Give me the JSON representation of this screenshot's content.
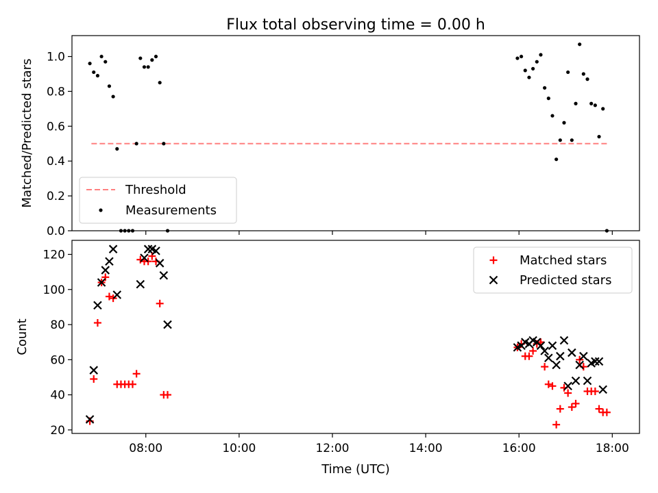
{
  "figure": {
    "title": "Flux total observing time = 0.00 h"
  },
  "chart_data": [
    {
      "type": "scatter",
      "panel": "top",
      "ylabel": "Matched/Predicted stars",
      "xlim": [
        "06:25",
        "18:35"
      ],
      "ylim": [
        0,
        1.12
      ],
      "yticks": [
        0.0,
        0.2,
        0.4,
        0.6,
        0.8,
        1.0
      ],
      "ytick_labels": [
        "0.0",
        "0.2",
        "0.4",
        "0.6",
        "0.8",
        "1.0"
      ],
      "grid": false,
      "legend": {
        "placement": "lower-left",
        "entries": [
          {
            "label": "Threshold",
            "marker": "dashed-line",
            "color": "#ff7f7f"
          },
          {
            "label": "Measurements",
            "marker": "dot",
            "color": "#000000"
          }
        ]
      },
      "threshold": {
        "name": "Threshold",
        "value": 0.5,
        "x_range": [
          "06:50",
          "17:53"
        ],
        "color": "#ff7f7f"
      },
      "series": [
        {
          "name": "Measurements",
          "color": "#000000",
          "points": [
            [
              "06:48",
              0.96
            ],
            [
              "06:53",
              0.91
            ],
            [
              "06:58",
              0.89
            ],
            [
              "07:03",
              1.0
            ],
            [
              "07:08",
              0.97
            ],
            [
              "07:13",
              0.83
            ],
            [
              "07:18",
              0.77
            ],
            [
              "07:23",
              0.47
            ],
            [
              "07:28",
              0.0
            ],
            [
              "07:33",
              0.0
            ],
            [
              "07:38",
              0.0
            ],
            [
              "07:43",
              0.0
            ],
            [
              "07:48",
              0.5
            ],
            [
              "07:53",
              0.99
            ],
            [
              "07:58",
              0.94
            ],
            [
              "08:03",
              0.94
            ],
            [
              "08:08",
              0.98
            ],
            [
              "08:13",
              1.0
            ],
            [
              "08:18",
              0.85
            ],
            [
              "08:23",
              0.5
            ],
            [
              "08:28",
              0.0
            ],
            [
              "15:58",
              0.99
            ],
            [
              "16:03",
              1.0
            ],
            [
              "16:08",
              0.92
            ],
            [
              "16:13",
              0.88
            ],
            [
              "16:18",
              0.93
            ],
            [
              "16:23",
              0.97
            ],
            [
              "16:28",
              1.01
            ],
            [
              "16:33",
              0.82
            ],
            [
              "16:38",
              0.76
            ],
            [
              "16:43",
              0.66
            ],
            [
              "16:48",
              0.41
            ],
            [
              "16:53",
              0.52
            ],
            [
              "16:58",
              0.62
            ],
            [
              "17:03",
              0.91
            ],
            [
              "17:08",
              0.52
            ],
            [
              "17:13",
              0.73
            ],
            [
              "17:18",
              1.07
            ],
            [
              "17:23",
              0.9
            ],
            [
              "17:28",
              0.87
            ],
            [
              "17:33",
              0.73
            ],
            [
              "17:38",
              0.72
            ],
            [
              "17:43",
              0.54
            ],
            [
              "17:48",
              0.7
            ],
            [
              "17:53",
              0.0
            ]
          ]
        }
      ]
    },
    {
      "type": "scatter",
      "panel": "bottom",
      "xlabel": "Time (UTC)",
      "ylabel": "Count",
      "xlim": [
        "06:25",
        "18:35"
      ],
      "ylim": [
        18,
        128
      ],
      "xticks": [
        "08:00",
        "10:00",
        "12:00",
        "14:00",
        "16:00",
        "18:00"
      ],
      "yticks": [
        20,
        40,
        60,
        80,
        100,
        120
      ],
      "ytick_labels": [
        "20",
        "40",
        "60",
        "80",
        "100",
        "120"
      ],
      "grid": false,
      "legend": {
        "placement": "upper-right",
        "entries": [
          {
            "label": "Matched stars",
            "marker": "plus",
            "color": "#ff0000"
          },
          {
            "label": "Predicted stars",
            "marker": "x",
            "color": "#000000"
          }
        ]
      },
      "series": [
        {
          "name": "Matched stars",
          "marker": "plus",
          "color": "#ff0000",
          "points": [
            [
              "06:48",
              25
            ],
            [
              "06:53",
              49
            ],
            [
              "06:58",
              81
            ],
            [
              "07:03",
              104
            ],
            [
              "07:08",
              107
            ],
            [
              "07:13",
              96
            ],
            [
              "07:18",
              95
            ],
            [
              "07:23",
              46
            ],
            [
              "07:28",
              46
            ],
            [
              "07:33",
              46
            ],
            [
              "07:38",
              46
            ],
            [
              "07:43",
              46
            ],
            [
              "07:48",
              52
            ],
            [
              "07:53",
              117
            ],
            [
              "07:58",
              116
            ],
            [
              "08:03",
              116
            ],
            [
              "08:08",
              119
            ],
            [
              "08:13",
              116
            ],
            [
              "08:18",
              92
            ],
            [
              "08:23",
              40
            ],
            [
              "08:28",
              40
            ],
            [
              "15:58",
              67
            ],
            [
              "16:03",
              69
            ],
            [
              "16:08",
              62
            ],
            [
              "16:13",
              62
            ],
            [
              "16:18",
              65
            ],
            [
              "16:23",
              69
            ],
            [
              "16:28",
              70
            ],
            [
              "16:33",
              56
            ],
            [
              "16:38",
              46
            ],
            [
              "16:43",
              45
            ],
            [
              "16:48",
              23
            ],
            [
              "16:53",
              32
            ],
            [
              "16:58",
              44
            ],
            [
              "17:03",
              41
            ],
            [
              "17:08",
              33
            ],
            [
              "17:13",
              35
            ],
            [
              "17:18",
              60
            ],
            [
              "17:23",
              56
            ],
            [
              "17:28",
              42
            ],
            [
              "17:33",
              42
            ],
            [
              "17:38",
              42
            ],
            [
              "17:43",
              32
            ],
            [
              "17:48",
              30
            ],
            [
              "17:53",
              30
            ]
          ]
        },
        {
          "name": "Predicted stars",
          "marker": "x",
          "color": "#000000",
          "points": [
            [
              "06:48",
              26
            ],
            [
              "06:53",
              54
            ],
            [
              "06:58",
              91
            ],
            [
              "07:03",
              104
            ],
            [
              "07:08",
              111
            ],
            [
              "07:13",
              116
            ],
            [
              "07:18",
              123
            ],
            [
              "07:23",
              97
            ],
            [
              "07:53",
              103
            ],
            [
              "07:58",
              118
            ],
            [
              "08:03",
              123
            ],
            [
              "08:08",
              123
            ],
            [
              "08:13",
              122
            ],
            [
              "08:18",
              115
            ],
            [
              "08:23",
              108
            ],
            [
              "08:28",
              80
            ],
            [
              "15:58",
              67
            ],
            [
              "16:03",
              68
            ],
            [
              "16:08",
              70
            ],
            [
              "16:13",
              69
            ],
            [
              "16:18",
              71
            ],
            [
              "16:23",
              70
            ],
            [
              "16:28",
              68
            ],
            [
              "16:33",
              65
            ],
            [
              "16:38",
              61
            ],
            [
              "16:43",
              68
            ],
            [
              "16:48",
              57
            ],
            [
              "16:53",
              62
            ],
            [
              "16:58",
              71
            ],
            [
              "17:03",
              45
            ],
            [
              "17:08",
              64
            ],
            [
              "17:13",
              48
            ],
            [
              "17:18",
              57
            ],
            [
              "17:23",
              62
            ],
            [
              "17:28",
              48
            ],
            [
              "17:33",
              58
            ],
            [
              "17:38",
              59
            ],
            [
              "17:43",
              59
            ],
            [
              "17:48",
              43
            ]
          ]
        }
      ]
    }
  ]
}
